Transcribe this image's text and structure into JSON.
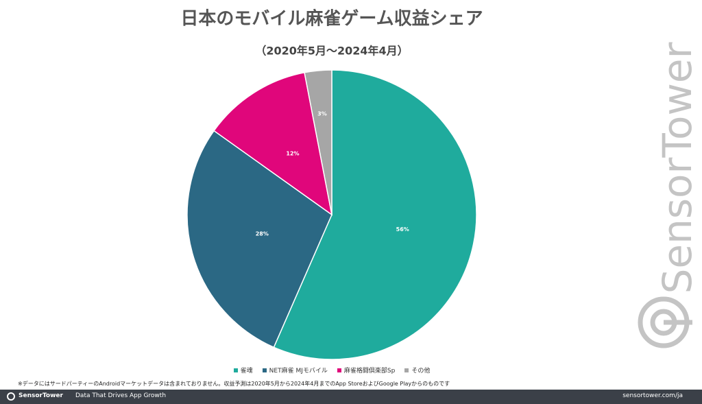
{
  "chart_data": {
    "type": "pie",
    "title": "日本のモバイル麻雀ゲーム収益シェア",
    "subtitle": "（2020年5月～2024年4月）",
    "categories": [
      "雀魂",
      "NET麻雀 MJモバイル",
      "麻雀格闘倶楽部Sp",
      "その他"
    ],
    "values": [
      56,
      28,
      12,
      3
    ],
    "value_labels": [
      "56%",
      "28%",
      "12%",
      "3%"
    ],
    "colors": [
      "#1fab9d",
      "#2b6884",
      "#e0067b",
      "#a6a6a6"
    ]
  },
  "footnote": "※データにはサードパーティーのAndroidマーケットデータは含まれておりません。収益予測は2020年5月から2024年4月までのApp StoreおよびGoogle Playからのものです",
  "watermark": "SensorTower",
  "footer": {
    "brand": "SensorTower",
    "tagline": "Data That Drives App Growth",
    "url": "sensortower.com/ja"
  }
}
